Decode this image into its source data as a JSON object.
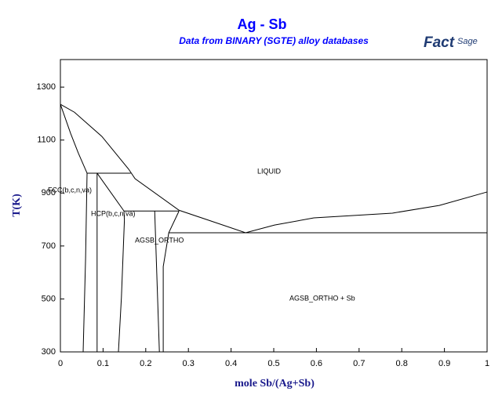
{
  "chart_data": {
    "type": "line",
    "title": "Ag - Sb",
    "subtitle": "Data from BINARY (SGTE) alloy databases",
    "logo": {
      "part1": "Fact",
      "part2": "Sage"
    },
    "x_label": "mole Sb/(Ag+Sb)",
    "y_label": "T(K)",
    "xlim": [
      0,
      1
    ],
    "ylim": [
      300,
      1404
    ],
    "xticks": [
      0,
      0.1,
      0.2,
      0.3,
      0.4,
      0.5,
      0.6,
      0.7,
      0.8,
      0.9,
      1
    ],
    "yticks": [
      300,
      500,
      700,
      900,
      1100,
      1300
    ],
    "annotations": [
      "LIQUID",
      "FCC(b,c,n,va)",
      "HCP(b,c,n,va)",
      "AGSB_ORTHO",
      "AGSB_ORTHO + Sb"
    ],
    "series": [
      {
        "color": "#000000",
        "x": [
          0,
          0.033,
          0.097,
          0.16,
          0.175,
          0.278,
          0.434,
          0.502,
          0.594,
          0.778,
          0.888,
          1.0
        ],
        "values": [
          1235,
          1205,
          1114,
          990,
          954,
          835,
          750,
          779,
          806,
          824,
          853,
          904
        ]
      },
      {
        "color": "#000000",
        "x": [
          0,
          0.024,
          0.042,
          0.0625
        ],
        "values": [
          1235,
          1125,
          1051,
          975
        ]
      },
      {
        "color": "#000000",
        "x": [
          0.0625,
          0.165
        ],
        "values": [
          975,
          975
        ]
      },
      {
        "color": "#000000",
        "x": [
          0.0625,
          0.059,
          0.0533
        ],
        "values": [
          975,
          652,
          300
        ]
      },
      {
        "color": "#000000",
        "x": [
          0.086,
          0.086
        ],
        "values": [
          975,
          300
        ]
      },
      {
        "color": "#000000",
        "x": [
          0.086,
          0.149,
          0.15,
          0.143,
          0.136
        ],
        "values": [
          975,
          832,
          797,
          506,
          300
        ]
      },
      {
        "color": "#000000",
        "x": [
          0.149,
          0.278
        ],
        "values": [
          832,
          832
        ]
      },
      {
        "color": "#000000",
        "x": [
          0.221,
          0.232
        ],
        "values": [
          832,
          300
        ]
      },
      {
        "color": "#000000",
        "x": [
          0.278,
          0.254,
          0.241,
          0.241
        ],
        "values": [
          832,
          750,
          622,
          300
        ]
      },
      {
        "color": "#000000",
        "x": [
          0.254,
          1.0
        ],
        "values": [
          750,
          750
        ]
      }
    ]
  }
}
